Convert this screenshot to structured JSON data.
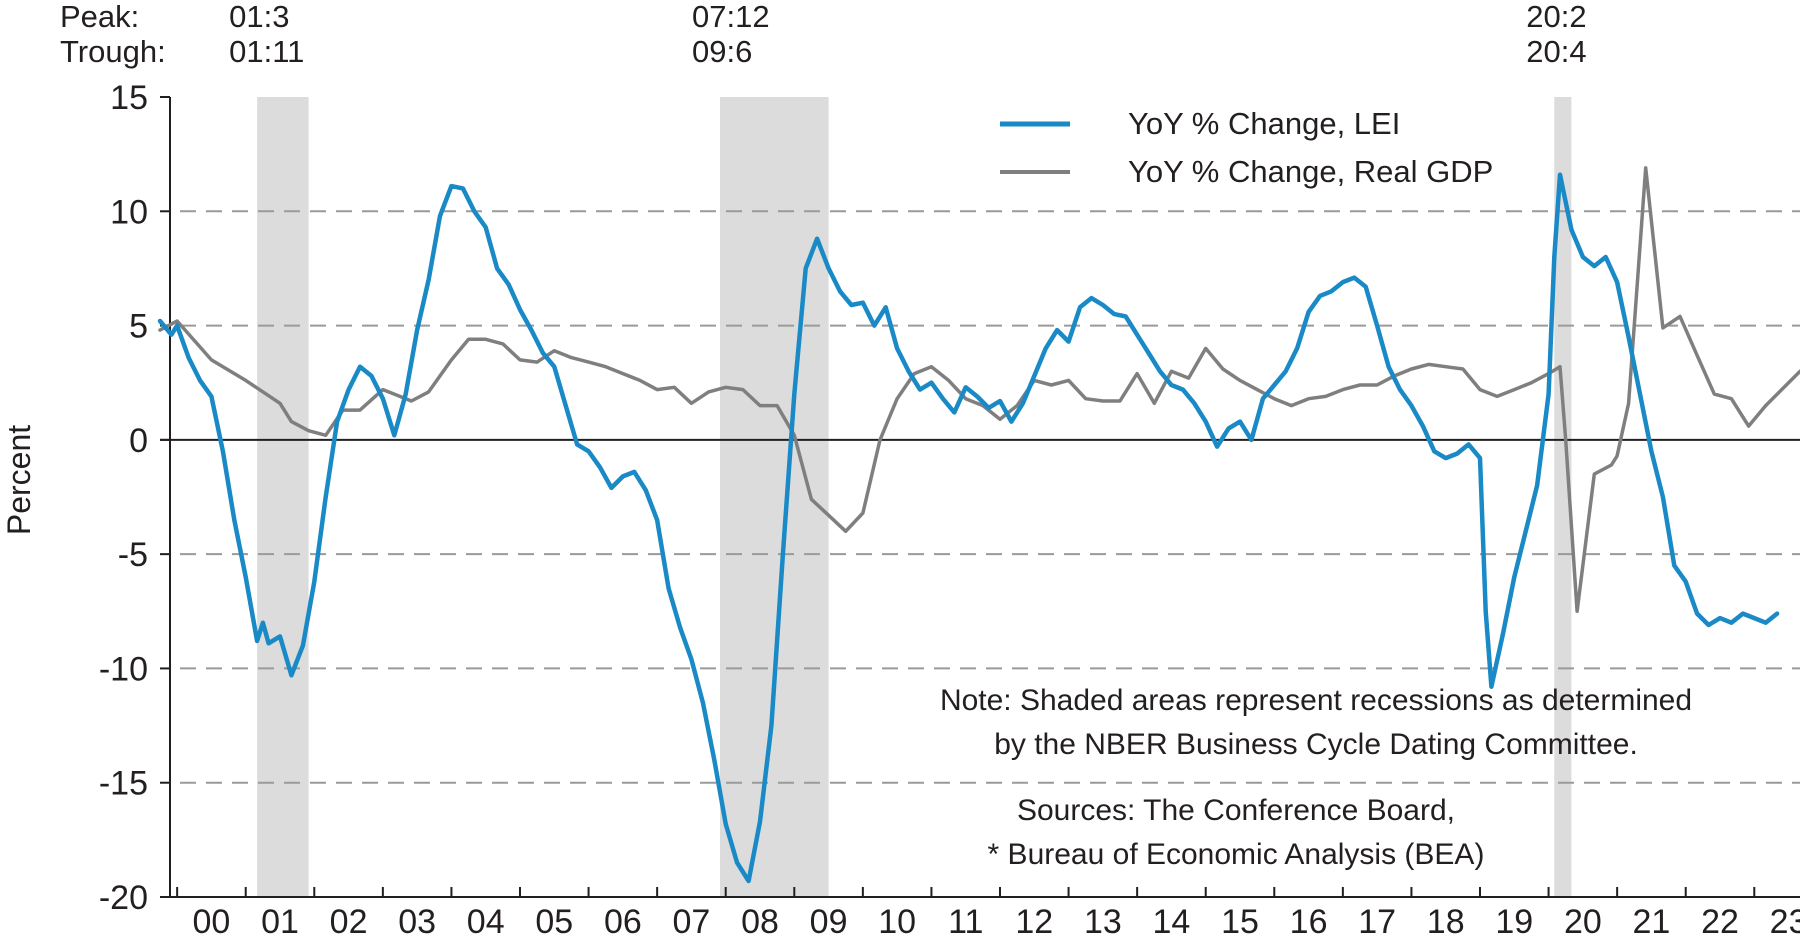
{
  "chart_data": {
    "type": "line",
    "title": "",
    "ylabel": "Percent",
    "xlabel": "",
    "ylim": [
      -20,
      15
    ],
    "xlim": [
      "1999-10",
      "2023-09"
    ],
    "yticks": [
      15,
      10,
      5,
      0,
      -5,
      -10,
      -15,
      -20
    ],
    "ytick_labels": [
      "15",
      "10",
      "5",
      "0",
      "-5",
      "-10",
      "-15",
      "-20"
    ],
    "xtick_labels": [
      "00",
      "01",
      "02",
      "03",
      "04",
      "05",
      "06",
      "07",
      "08",
      "09",
      "10",
      "11",
      "12",
      "13",
      "14",
      "15",
      "16",
      "17",
      "18",
      "19",
      "20",
      "21",
      "22",
      "23"
    ],
    "grid": "horizontal dashed",
    "legend_position": "top-center",
    "colors": {
      "lei": "#1a8ac6",
      "gdp": "#7f7f7f",
      "recession": "#dcdcdc",
      "zero_line": "#231f20",
      "grid": "#9a9a9a"
    },
    "recessions": [
      {
        "peak_label": "01:3",
        "trough_label": "01:11",
        "start": "2001-03",
        "end": "2001-11"
      },
      {
        "peak_label": "07:12",
        "trough_label": "09:6",
        "start": "2007-12",
        "end": "2009-06"
      },
      {
        "peak_label": "20:2",
        "trough_label": "20:4",
        "start": "2020-02",
        "end": "2020-04"
      }
    ],
    "header": {
      "peak": "Peak:",
      "trough": "Trough:"
    },
    "series": [
      {
        "name": "YoY % Change, LEI",
        "data": [
          [
            "1999-10",
            5.2
          ],
          [
            "1999-12",
            4.6
          ],
          [
            "2000-01",
            5.0
          ],
          [
            "2000-03",
            3.6
          ],
          [
            "2000-05",
            2.6
          ],
          [
            "2000-07",
            1.9
          ],
          [
            "2000-09",
            -0.5
          ],
          [
            "2000-11",
            -3.5
          ],
          [
            "2001-01",
            -6.0
          ],
          [
            "2001-03",
            -8.8
          ],
          [
            "2001-04",
            -8.0
          ],
          [
            "2001-05",
            -8.9
          ],
          [
            "2001-07",
            -8.6
          ],
          [
            "2001-09",
            -10.3
          ],
          [
            "2001-11",
            -9.0
          ],
          [
            "2002-01",
            -6.2
          ],
          [
            "2002-03",
            -2.5
          ],
          [
            "2002-05",
            0.8
          ],
          [
            "2002-07",
            2.2
          ],
          [
            "2002-09",
            3.2
          ],
          [
            "2002-11",
            2.8
          ],
          [
            "2003-01",
            1.8
          ],
          [
            "2003-03",
            0.2
          ],
          [
            "2003-05",
            2.0
          ],
          [
            "2003-07",
            4.8
          ],
          [
            "2003-09",
            7.0
          ],
          [
            "2003-11",
            9.8
          ],
          [
            "2004-01",
            11.1
          ],
          [
            "2004-03",
            11.0
          ],
          [
            "2004-05",
            10.0
          ],
          [
            "2004-07",
            9.3
          ],
          [
            "2004-09",
            7.5
          ],
          [
            "2004-11",
            6.8
          ],
          [
            "2005-01",
            5.7
          ],
          [
            "2005-03",
            4.8
          ],
          [
            "2005-05",
            3.8
          ],
          [
            "2005-07",
            3.2
          ],
          [
            "2005-09",
            1.5
          ],
          [
            "2005-11",
            -0.2
          ],
          [
            "2006-01",
            -0.5
          ],
          [
            "2006-03",
            -1.2
          ],
          [
            "2006-05",
            -2.1
          ],
          [
            "2006-07",
            -1.6
          ],
          [
            "2006-09",
            -1.4
          ],
          [
            "2006-11",
            -2.2
          ],
          [
            "2007-01",
            -3.5
          ],
          [
            "2007-03",
            -6.5
          ],
          [
            "2007-05",
            -8.2
          ],
          [
            "2007-07",
            -9.6
          ],
          [
            "2007-09",
            -11.5
          ],
          [
            "2007-11",
            -14.0
          ],
          [
            "2008-01",
            -16.8
          ],
          [
            "2008-03",
            -18.5
          ],
          [
            "2008-05",
            -19.3
          ],
          [
            "2008-07",
            -16.7
          ],
          [
            "2008-09",
            -12.5
          ],
          [
            "2008-11",
            -5.0
          ],
          [
            "2009-01",
            2.0
          ],
          [
            "2009-03",
            7.5
          ],
          [
            "2009-05",
            8.8
          ],
          [
            "2009-07",
            7.5
          ],
          [
            "2009-09",
            6.5
          ],
          [
            "2009-11",
            5.9
          ],
          [
            "2010-01",
            6.0
          ],
          [
            "2010-03",
            5.0
          ],
          [
            "2010-05",
            5.8
          ],
          [
            "2010-07",
            4.0
          ],
          [
            "2010-09",
            3.0
          ],
          [
            "2010-11",
            2.2
          ],
          [
            "2011-01",
            2.5
          ],
          [
            "2011-03",
            1.8
          ],
          [
            "2011-05",
            1.2
          ],
          [
            "2011-07",
            2.3
          ],
          [
            "2011-09",
            1.9
          ],
          [
            "2011-11",
            1.4
          ],
          [
            "2012-01",
            1.7
          ],
          [
            "2012-03",
            0.8
          ],
          [
            "2012-05",
            1.6
          ],
          [
            "2012-07",
            2.8
          ],
          [
            "2012-09",
            4.0
          ],
          [
            "2012-11",
            4.8
          ],
          [
            "2013-01",
            4.3
          ],
          [
            "2013-03",
            5.8
          ],
          [
            "2013-05",
            6.2
          ],
          [
            "2013-07",
            5.9
          ],
          [
            "2013-09",
            5.5
          ],
          [
            "2013-11",
            5.4
          ],
          [
            "2014-01",
            4.6
          ],
          [
            "2014-03",
            3.8
          ],
          [
            "2014-05",
            3.0
          ],
          [
            "2014-07",
            2.4
          ],
          [
            "2014-09",
            2.2
          ],
          [
            "2014-11",
            1.6
          ],
          [
            "2015-01",
            0.8
          ],
          [
            "2015-03",
            -0.3
          ],
          [
            "2015-05",
            0.5
          ],
          [
            "2015-07",
            0.8
          ],
          [
            "2015-09",
            0.0
          ],
          [
            "2015-11",
            1.8
          ],
          [
            "2016-01",
            2.4
          ],
          [
            "2016-03",
            3.0
          ],
          [
            "2016-05",
            4.0
          ],
          [
            "2016-07",
            5.6
          ],
          [
            "2016-09",
            6.3
          ],
          [
            "2016-11",
            6.5
          ],
          [
            "2017-01",
            6.9
          ],
          [
            "2017-03",
            7.1
          ],
          [
            "2017-05",
            6.7
          ],
          [
            "2017-07",
            5.0
          ],
          [
            "2017-09",
            3.2
          ],
          [
            "2017-11",
            2.2
          ],
          [
            "2018-01",
            1.5
          ],
          [
            "2018-03",
            0.6
          ],
          [
            "2018-05",
            -0.5
          ],
          [
            "2018-07",
            -0.8
          ],
          [
            "2018-09",
            -0.6
          ],
          [
            "2018-11",
            -0.2
          ],
          [
            "2019-01",
            -0.8
          ],
          [
            "2019-02",
            -7.5
          ],
          [
            "2019-03",
            -10.8
          ],
          [
            "2019-05",
            -8.5
          ],
          [
            "2019-07",
            -6.0
          ],
          [
            "2019-09",
            -4.0
          ],
          [
            "2019-11",
            -2.0
          ],
          [
            "2020-01",
            2.0
          ],
          [
            "2020-02",
            8.0
          ],
          [
            "2020-03",
            11.6
          ],
          [
            "2020-05",
            9.2
          ],
          [
            "2020-07",
            8.0
          ],
          [
            "2020-09",
            7.6
          ],
          [
            "2020-11",
            8.0
          ],
          [
            "2021-01",
            6.9
          ],
          [
            "2021-03",
            4.5
          ],
          [
            "2021-05",
            2.0
          ],
          [
            "2021-07",
            -0.5
          ],
          [
            "2021-09",
            -2.5
          ],
          [
            "2021-11",
            -5.5
          ],
          [
            "2022-01",
            -6.2
          ],
          [
            "2022-03",
            -7.6
          ],
          [
            "2022-05",
            -8.1
          ],
          [
            "2022-07",
            -7.8
          ],
          [
            "2022-09",
            -8.0
          ],
          [
            "2022-11",
            -7.6
          ],
          [
            "2023-01",
            -7.8
          ],
          [
            "2023-03",
            -8.0
          ],
          [
            "2023-05",
            -7.6
          ]
        ]
      },
      {
        "name": "YoY % Change, Real GDP",
        "data": [
          [
            "1999-10",
            4.8
          ],
          [
            "2000-01",
            5.2
          ],
          [
            "2000-07",
            3.5
          ],
          [
            "2001-01",
            2.6
          ],
          [
            "2001-07",
            1.6
          ],
          [
            "2001-09",
            0.8
          ],
          [
            "2001-12",
            0.4
          ],
          [
            "2002-03",
            0.2
          ],
          [
            "2002-06",
            1.3
          ],
          [
            "2002-09",
            1.3
          ],
          [
            "2003-01",
            2.2
          ],
          [
            "2003-03",
            2.0
          ],
          [
            "2003-06",
            1.7
          ],
          [
            "2003-09",
            2.1
          ],
          [
            "2004-01",
            3.5
          ],
          [
            "2004-04",
            4.4
          ],
          [
            "2004-07",
            4.4
          ],
          [
            "2004-10",
            4.2
          ],
          [
            "2005-01",
            3.5
          ],
          [
            "2005-04",
            3.4
          ],
          [
            "2005-07",
            3.9
          ],
          [
            "2005-10",
            3.6
          ],
          [
            "2006-01",
            3.4
          ],
          [
            "2006-04",
            3.2
          ],
          [
            "2006-07",
            2.9
          ],
          [
            "2006-10",
            2.6
          ],
          [
            "2007-01",
            2.2
          ],
          [
            "2007-04",
            2.3
          ],
          [
            "2007-07",
            1.6
          ],
          [
            "2007-10",
            2.1
          ],
          [
            "2008-01",
            2.3
          ],
          [
            "2008-04",
            2.2
          ],
          [
            "2008-07",
            1.5
          ],
          [
            "2008-10",
            1.5
          ],
          [
            "2009-01",
            0.2
          ],
          [
            "2009-04",
            -2.6
          ],
          [
            "2009-07",
            -3.3
          ],
          [
            "2009-10",
            -4.0
          ],
          [
            "2010-01",
            -3.2
          ],
          [
            "2010-04",
            0.0
          ],
          [
            "2010-07",
            1.8
          ],
          [
            "2010-10",
            2.9
          ],
          [
            "2011-01",
            3.2
          ],
          [
            "2011-04",
            2.6
          ],
          [
            "2011-07",
            1.8
          ],
          [
            "2011-10",
            1.5
          ],
          [
            "2012-01",
            0.9
          ],
          [
            "2012-04",
            1.5
          ],
          [
            "2012-07",
            2.6
          ],
          [
            "2012-10",
            2.4
          ],
          [
            "2013-01",
            2.6
          ],
          [
            "2013-04",
            1.8
          ],
          [
            "2013-07",
            1.7
          ],
          [
            "2013-10",
            1.7
          ],
          [
            "2014-01",
            2.9
          ],
          [
            "2014-04",
            1.6
          ],
          [
            "2014-07",
            3.0
          ],
          [
            "2014-10",
            2.7
          ],
          [
            "2015-01",
            4.0
          ],
          [
            "2015-04",
            3.1
          ],
          [
            "2015-07",
            2.6
          ],
          [
            "2015-10",
            2.2
          ],
          [
            "2016-01",
            1.8
          ],
          [
            "2016-04",
            1.5
          ],
          [
            "2016-07",
            1.8
          ],
          [
            "2016-10",
            1.9
          ],
          [
            "2017-01",
            2.2
          ],
          [
            "2017-04",
            2.4
          ],
          [
            "2017-07",
            2.4
          ],
          [
            "2017-10",
            2.8
          ],
          [
            "2018-01",
            3.1
          ],
          [
            "2018-04",
            3.3
          ],
          [
            "2018-07",
            3.2
          ],
          [
            "2018-10",
            3.1
          ],
          [
            "2019-01",
            2.2
          ],
          [
            "2019-04",
            1.9
          ],
          [
            "2019-07",
            2.2
          ],
          [
            "2019-10",
            2.5
          ],
          [
            "2020-01",
            2.9
          ],
          [
            "2020-03",
            3.2
          ],
          [
            "2020-04",
            0.0
          ],
          [
            "2020-06",
            -7.5
          ],
          [
            "2020-09",
            -1.5
          ],
          [
            "2020-12",
            -1.1
          ],
          [
            "2021-01",
            -0.7
          ],
          [
            "2021-03",
            1.6
          ],
          [
            "2021-06",
            11.9
          ],
          [
            "2021-09",
            4.9
          ],
          [
            "2021-12",
            5.4
          ],
          [
            "2022-03",
            3.7
          ],
          [
            "2022-06",
            2.0
          ],
          [
            "2022-09",
            1.8
          ],
          [
            "2022-12",
            0.6
          ],
          [
            "2023-03",
            1.5
          ],
          [
            "2023-09",
            3.0
          ]
        ]
      }
    ],
    "legend": [
      "YoY % Change, LEI",
      "YoY % Change, Real GDP"
    ],
    "note_lines": [
      "Note: Shaded areas represent recessions as determined",
      "by the NBER Business Cycle Dating Committee."
    ],
    "source_lines": [
      "Sources: The Conference Board,",
      "* Bureau of Economic Analysis (BEA)"
    ]
  }
}
